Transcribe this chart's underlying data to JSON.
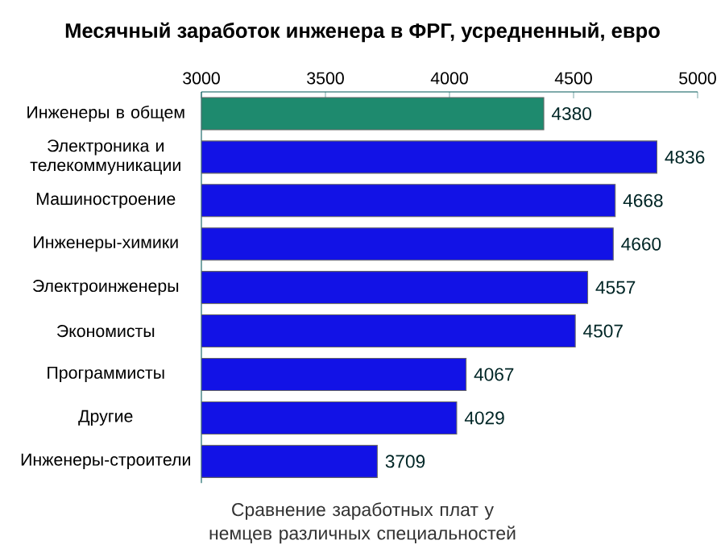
{
  "chart_data": {
    "type": "bar",
    "orientation": "horizontal",
    "title": "Месячный заработок инженера в ФРГ, усредненный, евро",
    "categories": [
      "Инженеры в общем",
      "Электроника и телекоммуникации",
      "Машиностроение",
      "Инженеры-химики",
      "Электроинженеры",
      "Экономисты",
      "Программисты",
      "Другие",
      "Инженеры-строители"
    ],
    "values": [
      4380,
      4836,
      4668,
      4660,
      4557,
      4507,
      4067,
      4029,
      3709
    ],
    "colors": [
      "#1e8a6e",
      "#1212e6",
      "#1212e6",
      "#1212e6",
      "#1212e6",
      "#1212e6",
      "#1212e6",
      "#1212e6",
      "#1212e6"
    ],
    "xlim": [
      3000,
      5000
    ],
    "xticks": [
      3000,
      3500,
      4000,
      4500,
      5000
    ],
    "data_labels": true,
    "annotations": [
      "Сравнение заработных плат у немцев различных специальностей"
    ]
  }
}
